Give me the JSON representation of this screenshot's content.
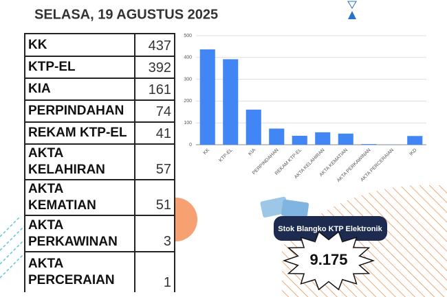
{
  "header": {
    "date": "SELASA, 19 AGUSTUS 2025"
  },
  "table": {
    "rows": [
      [
        "KK",
        437
      ],
      [
        "KTP-EL",
        392
      ],
      [
        "KIA",
        161
      ],
      [
        "PERPINDAHAN",
        74
      ],
      [
        "REKAM KTP-EL",
        41
      ],
      [
        "AKTA KELAHIRAN",
        57
      ],
      [
        "AKTA KEMATIAN",
        51
      ],
      [
        "AKTA PERKAWINAN",
        3
      ],
      [
        "AKTA PERCERAIAN",
        1
      ]
    ]
  },
  "chart_data": {
    "type": "bar",
    "categories": [
      "KK",
      "KTP-EL",
      "KIA",
      "PERPINDAHAN",
      "REKAM KTP-EL",
      "AKTA KELAHIRAN",
      "AKTA KEMATIAN",
      "AKTA PERKAWINAN",
      "AKTA PERCERAIAN",
      "IKD"
    ],
    "values": [
      437,
      392,
      161,
      74,
      41,
      57,
      51,
      3,
      1,
      40
    ],
    "color": "#4285f4",
    "ylim": [
      0,
      500
    ],
    "yticks": [
      0,
      100,
      200,
      300,
      400,
      500
    ],
    "grid": true
  },
  "stock": {
    "title": "Stok Blangko KTP Elektronik",
    "value": "9.175"
  }
}
